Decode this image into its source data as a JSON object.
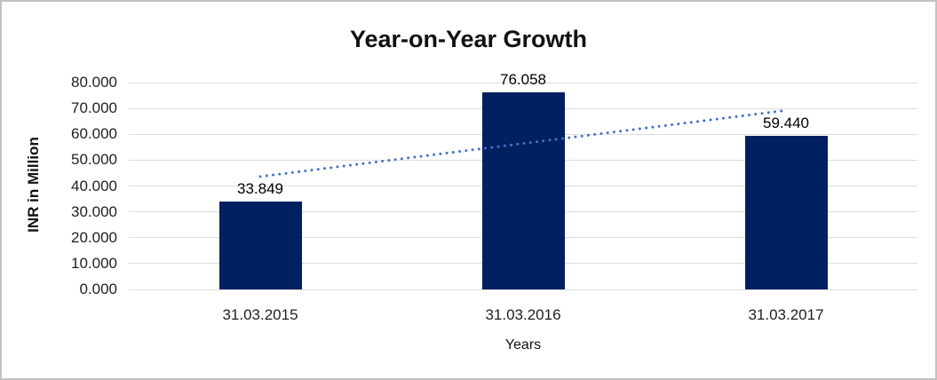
{
  "chart_data": {
    "type": "bar",
    "title": "Year-on-Year Growth",
    "xlabel": "Years",
    "ylabel": "INR in Million",
    "categories": [
      "31.03.2015",
      "31.03.2016",
      "31.03.2017"
    ],
    "values": [
      33.849,
      76.058,
      59.44
    ],
    "value_labels": [
      "33.849",
      "76.058",
      "59.440"
    ],
    "ylim": [
      0,
      80
    ],
    "y_tick_step": 10,
    "y_tick_labels": [
      "0.000",
      "10.000",
      "20.000",
      "30.000",
      "40.000",
      "50.000",
      "60.000",
      "70.000",
      "80.000"
    ],
    "grid": "horizontal",
    "legend": "none",
    "trendline": {
      "type": "linear",
      "style": "dotted",
      "start_value": 43.65,
      "end_value": 69.25
    },
    "colors": {
      "bar": "#002060",
      "trendline": "#4472C4",
      "gridline": "#DCDCDC",
      "text": "#1F1F1F",
      "frame_border": "#C2C2C2",
      "background": "#FFFFFF"
    }
  }
}
